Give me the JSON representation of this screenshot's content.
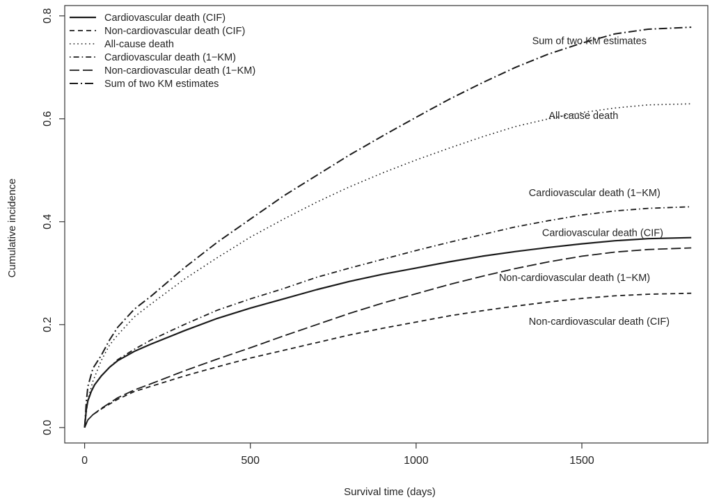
{
  "chart_data": {
    "type": "line",
    "title": "",
    "xlabel": "Survival time (days)",
    "ylabel": "Cumulative incidence",
    "xlim": [
      -60,
      1880
    ],
    "ylim": [
      -0.03,
      0.82
    ],
    "xticks": [
      0,
      500,
      1000,
      1500
    ],
    "yticks": [
      0.0,
      0.2,
      0.4,
      0.6,
      0.8
    ],
    "xtick_labels": [
      "0",
      "500",
      "1000",
      "1500"
    ],
    "ytick_labels": [
      "0.0",
      "0.2",
      "0.4",
      "0.6",
      "0.8"
    ],
    "grid": false,
    "legend_position": "top-left",
    "series": [
      {
        "name": "Cardiovascular death (CIF)",
        "style": "solid",
        "annotation": "Cardiovascular death (CIF)",
        "annotation_at": [
          1380,
          0.372
        ],
        "x": [
          0,
          5,
          10,
          20,
          30,
          50,
          75,
          100,
          150,
          200,
          300,
          400,
          500,
          600,
          700,
          800,
          900,
          1000,
          1100,
          1200,
          1300,
          1400,
          1500,
          1600,
          1700,
          1830
        ],
        "y": [
          0,
          0.035,
          0.052,
          0.07,
          0.083,
          0.1,
          0.117,
          0.13,
          0.148,
          0.162,
          0.188,
          0.212,
          0.232,
          0.25,
          0.268,
          0.284,
          0.298,
          0.31,
          0.322,
          0.333,
          0.342,
          0.35,
          0.357,
          0.363,
          0.367,
          0.369
        ]
      },
      {
        "name": "Non-cardiovascular death (CIF)",
        "style": "short-dash",
        "annotation": "Non-cardiovascular death (CIF)",
        "annotation_at": [
          1340,
          0.2
        ],
        "x": [
          0,
          10,
          25,
          50,
          100,
          150,
          200,
          300,
          400,
          500,
          600,
          700,
          800,
          900,
          1000,
          1100,
          1200,
          1300,
          1400,
          1500,
          1600,
          1700,
          1830
        ],
        "y": [
          0,
          0.015,
          0.025,
          0.036,
          0.055,
          0.07,
          0.08,
          0.1,
          0.118,
          0.135,
          0.15,
          0.165,
          0.18,
          0.193,
          0.205,
          0.217,
          0.227,
          0.236,
          0.244,
          0.251,
          0.256,
          0.259,
          0.261
        ]
      },
      {
        "name": "All-cause death",
        "style": "dotted",
        "annotation": "All-cause death",
        "annotation_at": [
          1400,
          0.6
        ],
        "x": [
          0,
          10,
          25,
          50,
          75,
          100,
          150,
          200,
          300,
          400,
          500,
          600,
          700,
          800,
          900,
          1000,
          1100,
          1200,
          1300,
          1400,
          1500,
          1600,
          1700,
          1830
        ],
        "y": [
          0,
          0.055,
          0.09,
          0.13,
          0.16,
          0.18,
          0.215,
          0.24,
          0.288,
          0.33,
          0.37,
          0.405,
          0.438,
          0.468,
          0.495,
          0.52,
          0.543,
          0.565,
          0.585,
          0.6,
          0.612,
          0.621,
          0.627,
          0.629
        ]
      },
      {
        "name": "Cardiovascular death (1−KM)",
        "style": "dash-dot",
        "annotation": "Cardiovascular death (1−KM)",
        "annotation_at": [
          1340,
          0.45
        ],
        "x": [
          0,
          5,
          10,
          20,
          30,
          50,
          75,
          100,
          150,
          200,
          300,
          400,
          500,
          600,
          700,
          800,
          900,
          1000,
          1100,
          1200,
          1300,
          1400,
          1500,
          1600,
          1700,
          1830
        ],
        "y": [
          0,
          0.035,
          0.052,
          0.07,
          0.083,
          0.1,
          0.117,
          0.132,
          0.152,
          0.17,
          0.2,
          0.228,
          0.25,
          0.27,
          0.292,
          0.31,
          0.327,
          0.344,
          0.36,
          0.375,
          0.39,
          0.402,
          0.413,
          0.421,
          0.426,
          0.429
        ]
      },
      {
        "name": "Non-cardiovascular death (1−KM)",
        "style": "long-dash",
        "annotation": "Non-cardiovascular death (1−KM)",
        "annotation_at": [
          1250,
          0.285
        ],
        "x": [
          0,
          10,
          25,
          50,
          100,
          150,
          200,
          300,
          400,
          500,
          600,
          700,
          800,
          900,
          1000,
          1100,
          1200,
          1300,
          1400,
          1500,
          1600,
          1700,
          1830
        ],
        "y": [
          0,
          0.015,
          0.025,
          0.037,
          0.058,
          0.073,
          0.085,
          0.11,
          0.133,
          0.155,
          0.178,
          0.2,
          0.222,
          0.242,
          0.26,
          0.278,
          0.294,
          0.309,
          0.322,
          0.333,
          0.341,
          0.346,
          0.349
        ]
      },
      {
        "name": "Sum of two KM estimates",
        "style": "long-dash-dot",
        "annotation": "Sum of two KM estimates",
        "annotation_at": [
          1350,
          0.745
        ],
        "x": [
          0,
          5,
          10,
          25,
          50,
          75,
          100,
          150,
          200,
          300,
          400,
          500,
          600,
          700,
          800,
          900,
          1000,
          1100,
          1200,
          1300,
          1400,
          1500,
          1600,
          1700,
          1830
        ],
        "y": [
          0,
          0.05,
          0.08,
          0.115,
          0.14,
          0.17,
          0.195,
          0.23,
          0.255,
          0.31,
          0.36,
          0.405,
          0.45,
          0.49,
          0.53,
          0.567,
          0.603,
          0.638,
          0.67,
          0.7,
          0.726,
          0.747,
          0.765,
          0.774,
          0.778
        ]
      }
    ]
  }
}
